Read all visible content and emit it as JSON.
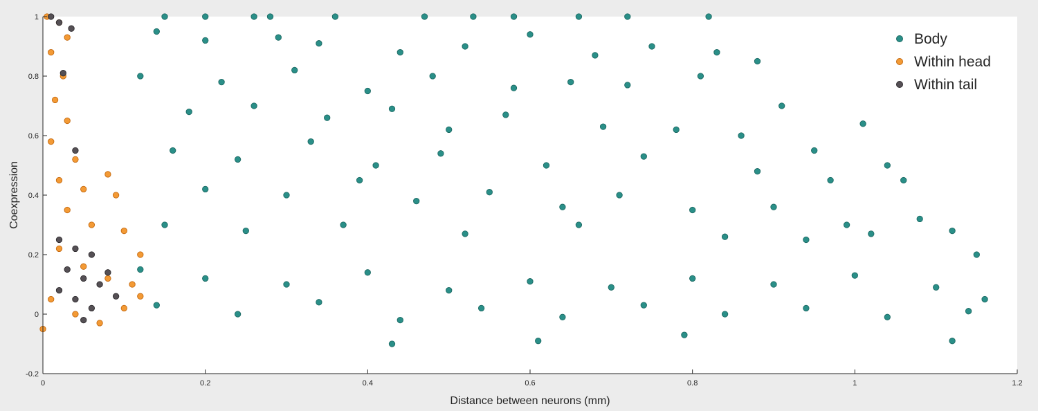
{
  "chart_data": {
    "type": "scatter",
    "title": "",
    "xlabel": "Distance between neurons (mm)",
    "ylabel": "Coexpression",
    "xlim": [
      0,
      1.2
    ],
    "ylim": [
      -0.2,
      1
    ],
    "xticks": [
      "0",
      "0.2",
      "0.4",
      "0.6",
      "0.8",
      "1",
      "1.2"
    ],
    "yticks": [
      "-0.2",
      "0",
      "0.2",
      "0.4",
      "0.6",
      "0.8",
      "1"
    ],
    "xtick_values": [
      0,
      0.2,
      0.4,
      0.6,
      0.8,
      1,
      1.2
    ],
    "ytick_values": [
      -0.2,
      0,
      0.2,
      0.4,
      0.6,
      0.8,
      1
    ],
    "grid": false,
    "legend_position": "top-right",
    "series": [
      {
        "name": "Body",
        "color": "#2a8f88",
        "points": [
          [
            0.15,
            1.0
          ],
          [
            0.2,
            1.0
          ],
          [
            0.26,
            1.0
          ],
          [
            0.28,
            1.0
          ],
          [
            0.36,
            1.0
          ],
          [
            0.47,
            1.0
          ],
          [
            0.53,
            1.0
          ],
          [
            0.58,
            1.0
          ],
          [
            0.66,
            1.0
          ],
          [
            0.72,
            1.0
          ],
          [
            0.82,
            1.0
          ],
          [
            0.14,
            0.95
          ],
          [
            0.2,
            0.92
          ],
          [
            0.29,
            0.93
          ],
          [
            0.34,
            0.91
          ],
          [
            0.44,
            0.88
          ],
          [
            0.52,
            0.9
          ],
          [
            0.6,
            0.94
          ],
          [
            0.68,
            0.87
          ],
          [
            0.75,
            0.9
          ],
          [
            0.83,
            0.88
          ],
          [
            0.88,
            0.85
          ],
          [
            0.12,
            0.8
          ],
          [
            0.22,
            0.78
          ],
          [
            0.31,
            0.82
          ],
          [
            0.4,
            0.75
          ],
          [
            0.48,
            0.8
          ],
          [
            0.58,
            0.76
          ],
          [
            0.65,
            0.78
          ],
          [
            0.72,
            0.77
          ],
          [
            0.81,
            0.8
          ],
          [
            0.91,
            0.7
          ],
          [
            0.18,
            0.68
          ],
          [
            0.26,
            0.7
          ],
          [
            0.35,
            0.66
          ],
          [
            0.43,
            0.69
          ],
          [
            0.5,
            0.62
          ],
          [
            0.57,
            0.67
          ],
          [
            0.69,
            0.63
          ],
          [
            0.78,
            0.62
          ],
          [
            0.86,
            0.6
          ],
          [
            0.95,
            0.55
          ],
          [
            1.01,
            0.64
          ],
          [
            0.16,
            0.55
          ],
          [
            0.24,
            0.52
          ],
          [
            0.33,
            0.58
          ],
          [
            0.41,
            0.5
          ],
          [
            0.49,
            0.54
          ],
          [
            0.62,
            0.5
          ],
          [
            0.74,
            0.53
          ],
          [
            0.88,
            0.48
          ],
          [
            0.97,
            0.45
          ],
          [
            1.04,
            0.5
          ],
          [
            1.06,
            0.45
          ],
          [
            0.2,
            0.42
          ],
          [
            0.3,
            0.4
          ],
          [
            0.39,
            0.45
          ],
          [
            0.46,
            0.38
          ],
          [
            0.55,
            0.41
          ],
          [
            0.64,
            0.36
          ],
          [
            0.71,
            0.4
          ],
          [
            0.8,
            0.35
          ],
          [
            0.9,
            0.36
          ],
          [
            0.99,
            0.3
          ],
          [
            1.08,
            0.32
          ],
          [
            1.12,
            0.28
          ],
          [
            0.15,
            0.3
          ],
          [
            0.25,
            0.28
          ],
          [
            0.37,
            0.3
          ],
          [
            0.52,
            0.27
          ],
          [
            0.66,
            0.3
          ],
          [
            0.84,
            0.26
          ],
          [
            0.94,
            0.25
          ],
          [
            1.02,
            0.27
          ],
          [
            1.15,
            0.2
          ],
          [
            0.12,
            0.15
          ],
          [
            0.2,
            0.12
          ],
          [
            0.3,
            0.1
          ],
          [
            0.4,
            0.14
          ],
          [
            0.5,
            0.08
          ],
          [
            0.6,
            0.11
          ],
          [
            0.7,
            0.09
          ],
          [
            0.8,
            0.12
          ],
          [
            0.9,
            0.1
          ],
          [
            1.0,
            0.13
          ],
          [
            1.1,
            0.09
          ],
          [
            1.16,
            0.05
          ],
          [
            0.14,
            0.03
          ],
          [
            0.24,
            0.0
          ],
          [
            0.34,
            0.04
          ],
          [
            0.44,
            -0.02
          ],
          [
            0.54,
            0.02
          ],
          [
            0.64,
            -0.01
          ],
          [
            0.74,
            0.03
          ],
          [
            0.84,
            0.0
          ],
          [
            0.94,
            0.02
          ],
          [
            1.04,
            -0.01
          ],
          [
            1.14,
            0.01
          ],
          [
            0.43,
            -0.1
          ],
          [
            0.61,
            -0.09
          ],
          [
            0.79,
            -0.07
          ],
          [
            1.12,
            -0.09
          ]
        ]
      },
      {
        "name": "Within head",
        "color": "#f39a35",
        "points": [
          [
            0.005,
            1.0
          ],
          [
            0.02,
            0.98
          ],
          [
            0.03,
            0.93
          ],
          [
            0.01,
            0.88
          ],
          [
            0.025,
            0.8
          ],
          [
            0.015,
            0.72
          ],
          [
            0.03,
            0.65
          ],
          [
            0.01,
            0.58
          ],
          [
            0.04,
            0.52
          ],
          [
            0.02,
            0.45
          ],
          [
            0.05,
            0.42
          ],
          [
            0.08,
            0.47
          ],
          [
            0.09,
            0.4
          ],
          [
            0.03,
            0.35
          ],
          [
            0.06,
            0.3
          ],
          [
            0.1,
            0.28
          ],
          [
            0.12,
            0.2
          ],
          [
            0.02,
            0.22
          ],
          [
            0.05,
            0.16
          ],
          [
            0.08,
            0.12
          ],
          [
            0.11,
            0.1
          ],
          [
            0.01,
            0.05
          ],
          [
            0.04,
            0.0
          ],
          [
            0.07,
            -0.03
          ],
          [
            0.1,
            0.02
          ],
          [
            0.12,
            0.06
          ],
          [
            0.0,
            -0.05
          ]
        ]
      },
      {
        "name": "Within tail",
        "color": "#555055",
        "points": [
          [
            0.01,
            1.0
          ],
          [
            0.02,
            0.98
          ],
          [
            0.035,
            0.96
          ],
          [
            0.025,
            0.81
          ],
          [
            0.04,
            0.55
          ],
          [
            0.02,
            0.25
          ],
          [
            0.04,
            0.22
          ],
          [
            0.06,
            0.2
          ],
          [
            0.03,
            0.15
          ],
          [
            0.05,
            0.12
          ],
          [
            0.07,
            0.1
          ],
          [
            0.08,
            0.14
          ],
          [
            0.02,
            0.08
          ],
          [
            0.04,
            0.05
          ],
          [
            0.06,
            0.02
          ],
          [
            0.09,
            0.06
          ],
          [
            0.05,
            -0.02
          ]
        ]
      }
    ]
  }
}
